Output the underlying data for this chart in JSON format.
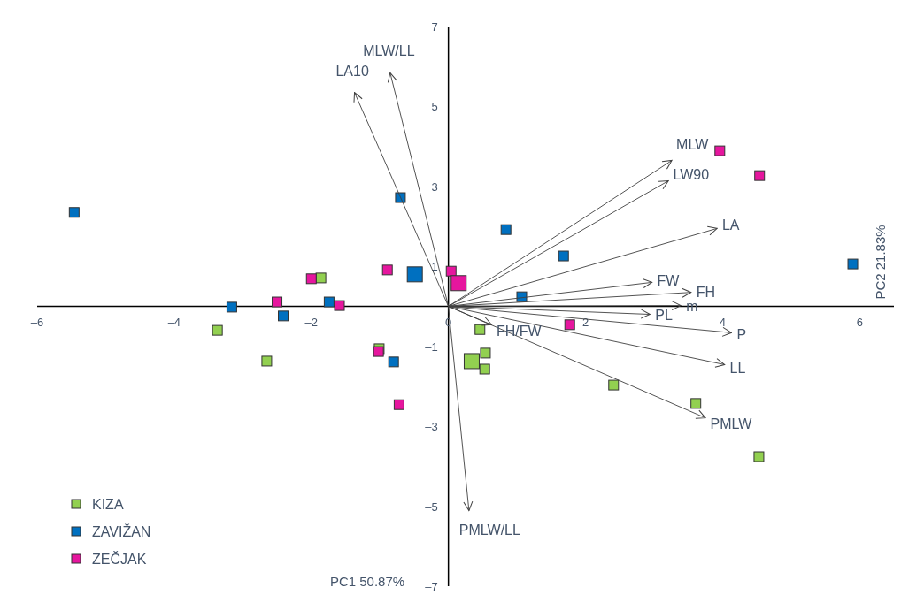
{
  "chart_data": {
    "type": "scatter",
    "xlabel": "PC1 50.87%",
    "ylabel": "PC2 21.83%",
    "xlim": [
      -6,
      6.5
    ],
    "ylim": [
      -7,
      7
    ],
    "xticks": [
      {
        "value": -6,
        "label": "–6"
      },
      {
        "value": -4,
        "label": "–4"
      },
      {
        "value": -2,
        "label": "–2"
      },
      0,
      2,
      4,
      6
    ],
    "yticks": [
      {
        "value": -7,
        "label": "–7"
      },
      {
        "value": -5,
        "label": "–5"
      },
      {
        "value": -3,
        "label": "–3"
      },
      {
        "value": -1,
        "label": "–1"
      },
      1,
      3,
      5,
      7
    ],
    "marker": "square",
    "legend": "bottom left",
    "grid": false,
    "series": [
      {
        "name": "KIZA",
        "color": "#92d050",
        "x": [
          -1.86,
          -3.37,
          -2.65,
          -1.01,
          0.46,
          0.54,
          0.53,
          2.41,
          3.61,
          4.53
        ],
        "values": [
          0.71,
          -0.6,
          -1.37,
          -1.06,
          -0.58,
          -1.17,
          -1.57,
          -1.97,
          -2.43,
          -3.76
        ]
      },
      {
        "name": "ZAVIŽAN",
        "color": "#0070c0",
        "x": [
          -5.46,
          -0.7,
          0.84,
          1.68,
          1.07,
          5.9,
          -3.16,
          -2.41,
          -1.74,
          -0.8
        ],
        "values": [
          2.35,
          2.72,
          1.92,
          1.26,
          0.24,
          1.06,
          -0.02,
          -0.24,
          0.11,
          -1.39
        ]
      },
      {
        "name": "ZEČJAK",
        "color": "#e6169e",
        "x": [
          -2,
          -2.5,
          -1.59,
          -0.89,
          -1.02,
          -0.72,
          0.04,
          1.77,
          3.96,
          4.54
        ],
        "values": [
          0.69,
          0.11,
          0.02,
          0.91,
          -1.13,
          -2.46,
          0.88,
          -0.46,
          3.89,
          3.27
        ]
      },
      {
        "type": "bubble",
        "color": "#92d050",
        "x": [
          0.34
        ],
        "values": [
          -1.37
        ],
        "sizes": [
          1
        ]
      },
      {
        "type": "bubble",
        "color": "#0070c0",
        "x": [
          -0.49
        ],
        "values": [
          0.8
        ],
        "sizes": [
          1
        ]
      },
      {
        "type": "bubble",
        "color": "#e6169e",
        "x": [
          0.15
        ],
        "values": [
          0.58
        ],
        "sizes": [
          1
        ]
      },
      {
        "type": "line",
        "name": "MLW/LL",
        "color": "#404040",
        "marker": "none",
        "x": [
          0,
          -0.85
        ],
        "values": [
          0,
          5.84
        ]
      },
      {
        "type": "line",
        "name": "LA10",
        "color": "#404040",
        "marker": "none",
        "x": [
          0,
          -1.37
        ],
        "values": [
          0,
          5.35
        ]
      },
      {
        "type": "line",
        "name": "MLW",
        "color": "#404040",
        "marker": "none",
        "x": [
          0,
          3.26
        ],
        "values": [
          0,
          3.65
        ]
      },
      {
        "type": "line",
        "name": "LW90",
        "color": "#404040",
        "marker": "none",
        "x": [
          0,
          3.21
        ],
        "values": [
          0,
          3.14
        ]
      },
      {
        "type": "line",
        "name": "LA",
        "color": "#404040",
        "marker": "none",
        "x": [
          0,
          3.92
        ],
        "values": [
          0,
          1.95
        ]
      },
      {
        "type": "line",
        "name": "FW",
        "color": "#404040",
        "marker": "none",
        "x": [
          0,
          2.97
        ],
        "values": [
          0,
          0.6
        ]
      },
      {
        "type": "line",
        "name": "FH",
        "color": "#404040",
        "marker": "none",
        "x": [
          0,
          3.54
        ],
        "values": [
          0,
          0.35
        ]
      },
      {
        "type": "line",
        "name": "m",
        "color": "#404040",
        "marker": "none",
        "x": [
          0,
          3.39
        ],
        "values": [
          0,
          0.02
        ]
      },
      {
        "type": "line",
        "name": "PL",
        "color": "#404040",
        "marker": "none",
        "x": [
          0,
          2.94
        ],
        "values": [
          0,
          -0.2
        ]
      },
      {
        "type": "line",
        "name": "P",
        "color": "#404040",
        "marker": "none",
        "x": [
          0,
          4.13
        ],
        "values": [
          0,
          -0.66
        ]
      },
      {
        "type": "line",
        "name": "LL",
        "color": "#404040",
        "marker": "none",
        "x": [
          0,
          4.03
        ],
        "values": [
          0,
          -1.46
        ]
      },
      {
        "type": "line",
        "name": "PMLW",
        "color": "#404040",
        "marker": "none",
        "x": [
          0,
          3.75
        ],
        "values": [
          0,
          -2.79
        ]
      },
      {
        "type": "line",
        "name": "FH/FW",
        "color": "#404040",
        "marker": "none",
        "x": [
          0,
          0.63
        ],
        "values": [
          0,
          -0.46
        ]
      },
      {
        "type": "line",
        "name": "PMLW/LL",
        "color": "#404040",
        "marker": "none",
        "x": [
          0,
          0.3
        ],
        "values": [
          0,
          -5.11
        ]
      }
    ]
  }
}
